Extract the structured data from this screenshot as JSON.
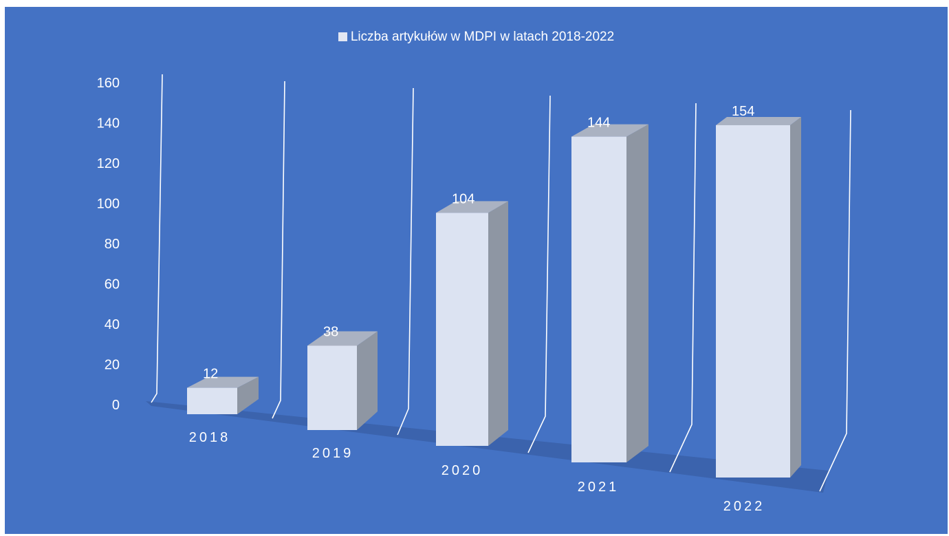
{
  "chart_data": {
    "type": "bar",
    "categories": [
      "2018",
      "2019",
      "2020",
      "2021",
      "2022"
    ],
    "series": [
      {
        "name": "Liczba artykułów w MDPI w latach 2018-2022",
        "values": [
          12,
          38,
          104,
          144,
          154
        ]
      }
    ],
    "title": "",
    "xlabel": "",
    "ylabel": "",
    "ylim": [
      0,
      160
    ],
    "yticks": [
      "0",
      "20",
      "40",
      "60",
      "80",
      "100",
      "120",
      "140",
      "160"
    ],
    "data_labels": [
      "12",
      "38",
      "104",
      "144",
      "154"
    ],
    "legend_position": "top",
    "style": "3d-column",
    "colors": {
      "background": "#4472c4",
      "bar_front": "#dce3f2",
      "bar_side": "#8e96a3",
      "bar_top": "#aab2c2",
      "floor": "#3b63ad",
      "gridlines": "#ffffff",
      "text": "#ffffff"
    }
  }
}
